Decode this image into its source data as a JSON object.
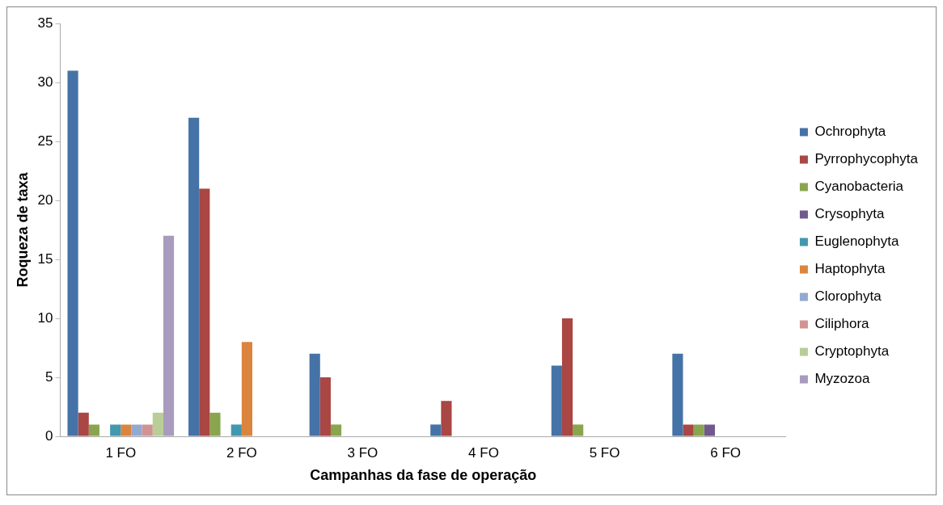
{
  "chart_data": {
    "type": "bar",
    "xlabel": "Campanhas da fase de operação",
    "ylabel": "Roqueza de taxa",
    "categories": [
      "1 FO",
      "2 FO",
      "3 FO",
      "4 FO",
      "5 FO",
      "6 FO"
    ],
    "series": [
      {
        "name": "Ochrophyta",
        "color": "#4572a7",
        "values": [
          31,
          27,
          7,
          1,
          6,
          7
        ]
      },
      {
        "name": "Pyrrophycophyta",
        "color": "#aa4643",
        "values": [
          2,
          21,
          5,
          3,
          10,
          1
        ]
      },
      {
        "name": "Cyanobacteria",
        "color": "#89a54e",
        "values": [
          1,
          2,
          1,
          0,
          1,
          1
        ]
      },
      {
        "name": "Crysophyta",
        "color": "#71588f",
        "values": [
          0,
          0,
          0,
          0,
          0,
          1
        ]
      },
      {
        "name": "Euglenophyta",
        "color": "#4198af",
        "values": [
          1,
          1,
          0,
          0,
          0,
          0
        ]
      },
      {
        "name": "Haptophyta",
        "color": "#db843d",
        "values": [
          1,
          8,
          0,
          0,
          0,
          0
        ]
      },
      {
        "name": "Clorophyta",
        "color": "#93a9cf",
        "values": [
          1,
          0,
          0,
          0,
          0,
          0
        ]
      },
      {
        "name": "Ciliphora",
        "color": "#d19392",
        "values": [
          1,
          0,
          0,
          0,
          0,
          0
        ]
      },
      {
        "name": "Cryptophyta",
        "color": "#b9cd96",
        "values": [
          2,
          0,
          0,
          0,
          0,
          0
        ]
      },
      {
        "name": "Myzozoa",
        "color": "#a99bbd",
        "values": [
          17,
          0,
          0,
          0,
          0,
          0
        ]
      }
    ],
    "ylim": [
      0,
      35
    ],
    "yticks": [
      0,
      5,
      10,
      15,
      20,
      25,
      30,
      35
    ],
    "grid": false,
    "legend": "right"
  }
}
